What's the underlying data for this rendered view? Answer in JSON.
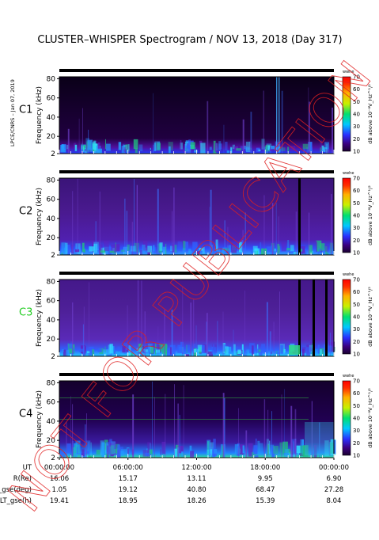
{
  "title": "CLUSTER–WHISPER Spectrogram / NOV 13, 2018 (Day 317)",
  "side_credit": "LPCE/CNRS – Jan 07, 2019",
  "watermark": "NOT FOR PUBLICATION",
  "chart_data": {
    "type": "heatmap",
    "title": "CLUSTER–WHISPER Spectrogram / NOV 13, 2018 (Day 317)",
    "ylabel": "Frequency (kHz)",
    "yticks": [
      "2",
      "20",
      "40",
      "60",
      "80"
    ],
    "ylim": [
      2,
      82
    ],
    "colorbar": {
      "label": "dB above 10⁻⁸V_Hz^¹/²",
      "top_label": "wwhe",
      "ticks": [
        "10",
        "20",
        "30",
        "40",
        "50",
        "60",
        "70"
      ],
      "range": [
        10,
        70
      ]
    },
    "panels": [
      {
        "name": "C1",
        "label_color": "#000000"
      },
      {
        "name": "C2",
        "label_color": "#000000"
      },
      {
        "name": "C3",
        "label_color": "#22cc22"
      },
      {
        "name": "C4",
        "label_color": "#000000"
      }
    ],
    "xticks": [
      "00:00:00",
      "06:00:00",
      "12:00:00",
      "18:00:00",
      "00:00:00"
    ],
    "ephemeris": [
      {
        "label": "UT",
        "values": [
          "00:00:00",
          "06:00:00",
          "12:00:00",
          "18:00:00",
          "00:00:00"
        ]
      },
      {
        "label": "R(Re)",
        "values": [
          "16.06",
          "15.17",
          "13.11",
          "9.95",
          "6.90"
        ]
      },
      {
        "label": "Lat_gse(deg)",
        "values": [
          "1.05",
          "19.12",
          "40.80",
          "68.47",
          "27.28"
        ]
      },
      {
        "label": "LT_gse(h)",
        "values": [
          "19.41",
          "18.95",
          "18.26",
          "15.39",
          "8.04"
        ]
      }
    ]
  }
}
